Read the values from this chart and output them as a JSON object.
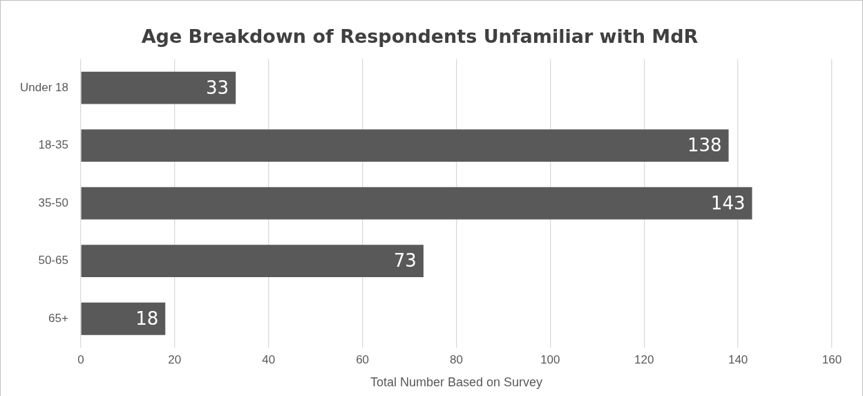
{
  "chart_data": {
    "type": "bar",
    "orientation": "horizontal",
    "title": "Age Breakdown of Respondents Unfamiliar with MdR",
    "xlabel": "Total Number Based on Survey",
    "categories": [
      "Under 18",
      "18-35",
      "35-50",
      "50-65",
      "65+"
    ],
    "values": [
      33,
      138,
      143,
      73,
      18
    ],
    "color": "#595959",
    "xlim": [
      0,
      160
    ],
    "xticks": [
      0,
      20,
      40,
      60,
      80,
      100,
      120,
      140,
      160
    ],
    "grid": "x",
    "data_labels": true,
    "legend": false
  }
}
